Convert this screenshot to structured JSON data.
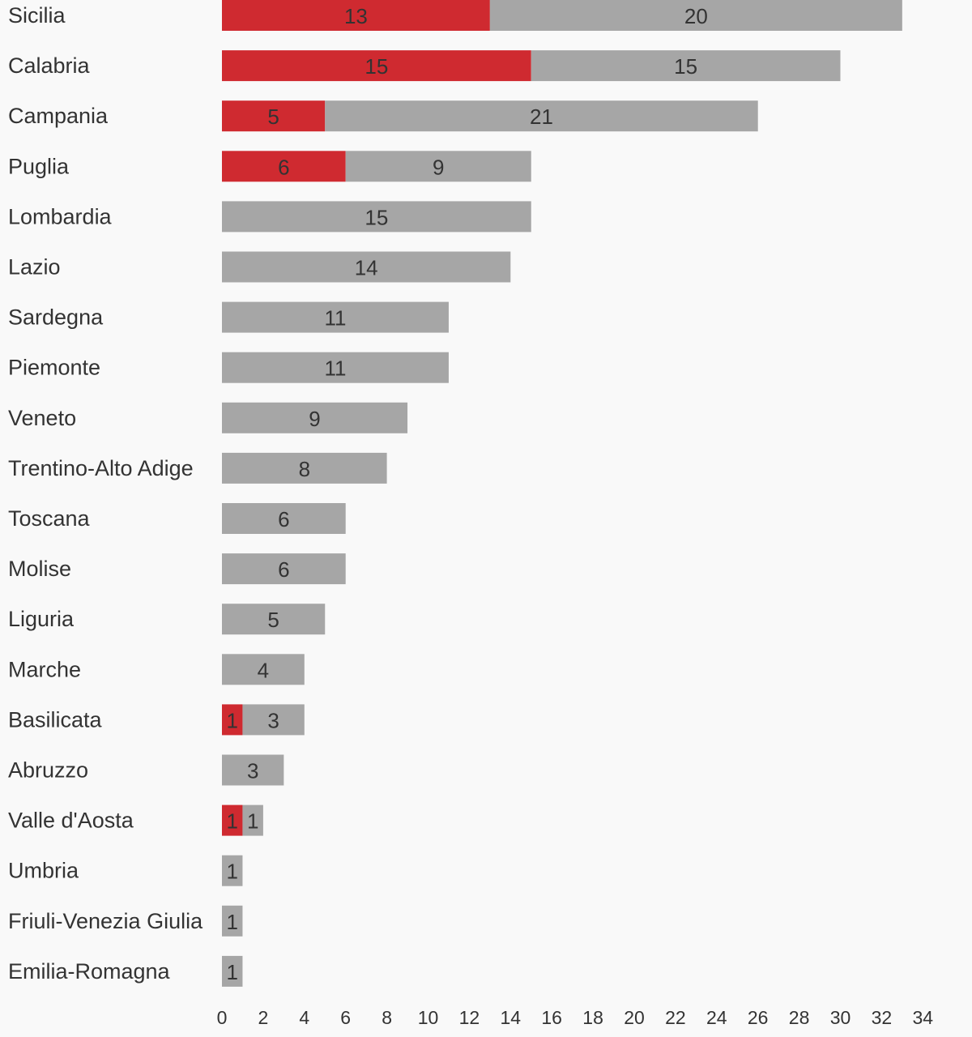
{
  "chart_data": {
    "type": "bar",
    "orientation": "horizontal",
    "stacked": true,
    "categories": [
      "Sicilia",
      "Calabria",
      "Campania",
      "Puglia",
      "Lombardia",
      "Lazio",
      "Sardegna",
      "Piemonte",
      "Veneto",
      "Trentino-Alto Adige",
      "Toscana",
      "Molise",
      "Liguria",
      "Marche",
      "Basilicata",
      "Abruzzo",
      "Valle d'Aosta",
      "Umbria",
      "Friuli-Venezia Giulia",
      "Emilia-Romagna"
    ],
    "series": [
      {
        "color": "#cf2a30",
        "values": [
          13,
          15,
          5,
          6,
          0,
          0,
          0,
          0,
          0,
          0,
          0,
          0,
          0,
          0,
          1,
          0,
          1,
          0,
          0,
          0
        ]
      },
      {
        "color": "#a6a6a6",
        "values": [
          20,
          15,
          21,
          9,
          15,
          14,
          11,
          11,
          9,
          8,
          6,
          6,
          5,
          4,
          3,
          3,
          1,
          1,
          1,
          1
        ]
      }
    ],
    "xlim": [
      0,
      34
    ],
    "xticks": [
      0,
      2,
      4,
      6,
      8,
      10,
      12,
      14,
      16,
      18,
      20,
      22,
      24,
      26,
      28,
      30,
      32,
      34
    ],
    "grid": false,
    "legend": "none",
    "title": "",
    "xlabel": "",
    "ylabel": ""
  }
}
